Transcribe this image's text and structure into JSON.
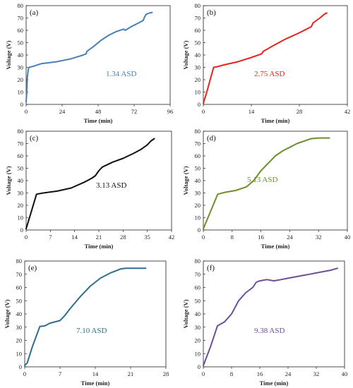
{
  "chart_data": [
    {
      "type": "line",
      "panel_label": "(a)",
      "annotation": "1.34 ASD",
      "color": "#4a7fb5",
      "xlabel": "Time (min)",
      "ylabel": "Voltage (V)",
      "xlim": [
        0,
        96
      ],
      "ylim": [
        0,
        80
      ],
      "xticks": [
        "0",
        "24",
        "48",
        "72",
        "96"
      ],
      "yticks": [
        "0",
        "10",
        "20",
        "30",
        "40",
        "50",
        "60",
        "70",
        "80"
      ],
      "series": [
        {
          "x": [
            0,
            0.4,
            0.8,
            1.5,
            2,
            5,
            10,
            20,
            30,
            38,
            40,
            40.5,
            45,
            50,
            55,
            60,
            65,
            66,
            70,
            75,
            78,
            79,
            80,
            82,
            84
          ],
          "values": [
            2,
            10,
            22,
            29,
            30,
            31,
            33,
            34.5,
            37,
            40,
            41,
            43,
            47,
            52,
            56,
            59,
            61,
            60,
            63,
            66,
            68,
            71,
            73,
            74,
            74.5
          ]
        }
      ]
    },
    {
      "type": "line",
      "panel_label": "(b)",
      "annotation": "2.75 ASD",
      "color": "#e8231f",
      "xlabel": "Time (min)",
      "ylabel": "Voltage (V)",
      "xlim": [
        0,
        42
      ],
      "ylim": [
        0,
        80
      ],
      "xticks": [
        "0",
        "14",
        "28",
        "42"
      ],
      "yticks": [
        "0",
        "10",
        "20",
        "30",
        "40",
        "50",
        "60",
        "70",
        "80"
      ],
      "series": [
        {
          "x": [
            0,
            1,
            2,
            3,
            4,
            6,
            10,
            14,
            17,
            17.5,
            20,
            24,
            28,
            31.5,
            32,
            34,
            35.5,
            36
          ],
          "values": [
            1,
            10,
            20,
            30,
            30.5,
            32,
            34.5,
            38,
            41,
            43,
            47,
            53,
            58,
            63,
            66,
            70,
            73.5,
            74
          ]
        }
      ]
    },
    {
      "type": "line",
      "panel_label": "(c)",
      "annotation": "3.13 ASD",
      "color": "#111111",
      "xlabel": "Time (min)",
      "ylabel": "Voltage (V)",
      "xlim": [
        0,
        42
      ],
      "ylim": [
        0,
        80
      ],
      "xticks": [
        "0",
        "7",
        "14",
        "21",
        "28",
        "35",
        "42"
      ],
      "yticks": [
        "0",
        "10",
        "20",
        "30",
        "40",
        "50",
        "60",
        "70",
        "80"
      ],
      "series": [
        {
          "x": [
            0,
            1.5,
            3,
            5,
            9,
            13,
            17,
            19,
            20,
            21,
            22,
            25,
            28,
            31,
            33,
            35,
            36,
            37
          ],
          "values": [
            1,
            15,
            29,
            30,
            31.5,
            34,
            39,
            42,
            44,
            48,
            51,
            55,
            58,
            62,
            65,
            69,
            72,
            74
          ]
        }
      ]
    },
    {
      "type": "line",
      "panel_label": "(d)",
      "annotation": "5.13 ASD",
      "color": "#6e8f2e",
      "xlabel": "Time (min)",
      "ylabel": "Voltage (V)",
      "xlim": [
        0,
        40
      ],
      "ylim": [
        0,
        80
      ],
      "xticks": [
        "0",
        "8",
        "16",
        "24",
        "32",
        "40"
      ],
      "yticks": [
        "0",
        "10",
        "20",
        "30",
        "40",
        "50",
        "60",
        "70",
        "80"
      ],
      "series": [
        {
          "x": [
            0,
            2,
            4,
            6,
            9,
            12,
            14,
            16,
            18,
            20,
            22,
            24,
            26,
            28,
            30,
            32,
            34,
            35
          ],
          "values": [
            1,
            15,
            29,
            30.5,
            32,
            35,
            40,
            48,
            54,
            60,
            64,
            67,
            70,
            72,
            74,
            74.5,
            74.5,
            74.5
          ]
        }
      ]
    },
    {
      "type": "line",
      "panel_label": "(e)",
      "annotation": "7.10 ASD",
      "color": "#2e6e8e",
      "xlabel": "Time (min)",
      "ylabel": "Voltage (V)",
      "xlim": [
        0,
        28
      ],
      "ylim": [
        0,
        80
      ],
      "xticks": [
        "0",
        "7",
        "14",
        "21",
        "28"
      ],
      "yticks": [
        "0",
        "10",
        "20",
        "30",
        "40",
        "50",
        "60",
        "70",
        "80"
      ],
      "series": [
        {
          "x": [
            0,
            0.5,
            1.5,
            3,
            4,
            5,
            7,
            8,
            9,
            11,
            13,
            15,
            17,
            19,
            20,
            22,
            24
          ],
          "values": [
            1,
            3,
            15,
            30.5,
            31,
            33,
            35,
            39,
            44,
            53,
            61,
            67,
            71,
            74,
            74.5,
            74.5,
            74.5
          ]
        }
      ]
    },
    {
      "type": "line",
      "panel_label": "(f)",
      "annotation": "9.38 ASD",
      "color": "#6b4f99",
      "xlabel": "Time (min)",
      "ylabel": "Voltage (V)",
      "xlim": [
        0,
        40
      ],
      "ylim": [
        0,
        80
      ],
      "xticks": [
        "0",
        "8",
        "16",
        "24",
        "32",
        "40"
      ],
      "yticks": [
        "0",
        "10",
        "20",
        "30",
        "40",
        "50",
        "60",
        "70",
        "80"
      ],
      "series": [
        {
          "x": [
            0,
            2,
            4,
            6,
            8,
            10,
            12,
            14,
            15,
            16,
            18,
            20,
            22,
            24,
            26,
            28,
            30,
            32,
            34,
            36,
            38
          ],
          "values": [
            1,
            15,
            31,
            34,
            40,
            50,
            56,
            60,
            64,
            65,
            66,
            65,
            66,
            67,
            68,
            69,
            70,
            71,
            72,
            73,
            74.5
          ]
        }
      ]
    }
  ]
}
